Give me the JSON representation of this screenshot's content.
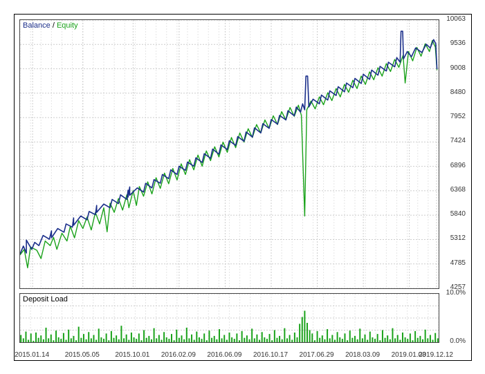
{
  "type": "line+area",
  "frame": {
    "border_color": "#000000",
    "background": "#ffffff"
  },
  "main_chart": {
    "title_parts": {
      "balance_label": "Balance",
      "sep": " / ",
      "equity_label": "Equity"
    },
    "balance_color": "#1a2e8a",
    "equity_color": "#1aa21a",
    "balance_line_width": 1.6,
    "equity_line_width": 1.4,
    "grid_color": "#cccccc",
    "grid_dash": "2 2",
    "font_size_labels": 10,
    "y": {
      "min": 4257,
      "max": 10063,
      "ticks": [
        4257,
        4785,
        5312,
        5840,
        6368,
        6896,
        7424,
        7952,
        8480,
        9008,
        9536,
        10063
      ]
    },
    "x": {
      "min": 0,
      "max": 1000,
      "tick_positions": [
        30,
        150,
        270,
        380,
        490,
        600,
        710,
        820,
        930,
        995
      ],
      "tick_labels": [
        "2015.01.14",
        "2015.05.05",
        "2015.10.01",
        "2016.02.09",
        "2016.06.09",
        "2016.10.17",
        "2017.06.29",
        "2018.03.09",
        "2019.01.03",
        "2019.12.12"
      ]
    },
    "balance_series": [
      [
        0,
        5000
      ],
      [
        8,
        5170
      ],
      [
        15,
        5020
      ],
      [
        15,
        5300
      ],
      [
        28,
        5100
      ],
      [
        35,
        5250
      ],
      [
        45,
        5180
      ],
      [
        55,
        5400
      ],
      [
        70,
        5320
      ],
      [
        75,
        5500
      ],
      [
        75,
        5350
      ],
      [
        90,
        5550
      ],
      [
        105,
        5470
      ],
      [
        110,
        5650
      ],
      [
        125,
        5580
      ],
      [
        128,
        5780
      ],
      [
        128,
        5620
      ],
      [
        145,
        5820
      ],
      [
        160,
        5740
      ],
      [
        165,
        5920
      ],
      [
        180,
        5850
      ],
      [
        183,
        6050
      ],
      [
        183,
        5900
      ],
      [
        200,
        6080
      ],
      [
        215,
        6000
      ],
      [
        220,
        6180
      ],
      [
        235,
        6090
      ],
      [
        240,
        6280
      ],
      [
        255,
        6180
      ],
      [
        258,
        6380
      ],
      [
        258,
        6230
      ],
      [
        262,
        6450
      ],
      [
        262,
        6270
      ],
      [
        280,
        6430
      ],
      [
        295,
        6340
      ],
      [
        300,
        6530
      ],
      [
        315,
        6430
      ],
      [
        320,
        6610
      ],
      [
        335,
        6530
      ],
      [
        340,
        6720
      ],
      [
        355,
        6630
      ],
      [
        360,
        6820
      ],
      [
        375,
        6720
      ],
      [
        380,
        6900
      ],
      [
        395,
        6810
      ],
      [
        400,
        6990
      ],
      [
        415,
        6900
      ],
      [
        420,
        7080
      ],
      [
        435,
        6980
      ],
      [
        440,
        7170
      ],
      [
        455,
        7070
      ],
      [
        460,
        7270
      ],
      [
        475,
        7160
      ],
      [
        480,
        7360
      ],
      [
        495,
        7260
      ],
      [
        500,
        7450
      ],
      [
        515,
        7350
      ],
      [
        520,
        7540
      ],
      [
        535,
        7440
      ],
      [
        540,
        7640
      ],
      [
        555,
        7530
      ],
      [
        560,
        7730
      ],
      [
        575,
        7620
      ],
      [
        580,
        7820
      ],
      [
        595,
        7720
      ],
      [
        600,
        7910
      ],
      [
        615,
        7810
      ],
      [
        620,
        8000
      ],
      [
        635,
        7900
      ],
      [
        640,
        8100
      ],
      [
        655,
        7990
      ],
      [
        660,
        8180
      ],
      [
        670,
        8070
      ],
      [
        675,
        8250
      ],
      [
        680,
        8120
      ],
      [
        683,
        8850
      ],
      [
        687,
        8850
      ],
      [
        690,
        8180
      ],
      [
        700,
        8350
      ],
      [
        715,
        8250
      ],
      [
        720,
        8440
      ],
      [
        735,
        8330
      ],
      [
        740,
        8530
      ],
      [
        755,
        8430
      ],
      [
        760,
        8620
      ],
      [
        775,
        8510
      ],
      [
        780,
        8700
      ],
      [
        795,
        8600
      ],
      [
        800,
        8800
      ],
      [
        815,
        8690
      ],
      [
        820,
        8890
      ],
      [
        835,
        8780
      ],
      [
        840,
        8980
      ],
      [
        855,
        8870
      ],
      [
        860,
        9060
      ],
      [
        875,
        8960
      ],
      [
        880,
        9150
      ],
      [
        895,
        9050
      ],
      [
        900,
        9250
      ],
      [
        908,
        9150
      ],
      [
        910,
        9820
      ],
      [
        914,
        9820
      ],
      [
        916,
        9220
      ],
      [
        925,
        9380
      ],
      [
        935,
        9270
      ],
      [
        945,
        9460
      ],
      [
        960,
        9360
      ],
      [
        970,
        9540
      ],
      [
        980,
        9460
      ],
      [
        988,
        9640
      ],
      [
        993,
        9550
      ],
      [
        996,
        9000
      ]
    ],
    "equity_series": [
      [
        0,
        4980
      ],
      [
        10,
        5100
      ],
      [
        18,
        4700
      ],
      [
        25,
        5150
      ],
      [
        40,
        5080
      ],
      [
        50,
        4900
      ],
      [
        60,
        5280
      ],
      [
        72,
        5180
      ],
      [
        80,
        5360
      ],
      [
        88,
        5100
      ],
      [
        100,
        5450
      ],
      [
        112,
        5280
      ],
      [
        120,
        5600
      ],
      [
        130,
        5350
      ],
      [
        140,
        5720
      ],
      [
        150,
        5550
      ],
      [
        160,
        5800
      ],
      [
        170,
        5520
      ],
      [
        180,
        5900
      ],
      [
        190,
        5650
      ],
      [
        200,
        6000
      ],
      [
        208,
        5480
      ],
      [
        215,
        6100
      ],
      [
        225,
        5900
      ],
      [
        235,
        6200
      ],
      [
        245,
        5950
      ],
      [
        255,
        6280
      ],
      [
        260,
        6000
      ],
      [
        270,
        6370
      ],
      [
        278,
        6050
      ],
      [
        285,
        6460
      ],
      [
        295,
        6250
      ],
      [
        305,
        6560
      ],
      [
        315,
        6300
      ],
      [
        325,
        6650
      ],
      [
        335,
        6420
      ],
      [
        345,
        6750
      ],
      [
        355,
        6520
      ],
      [
        365,
        6850
      ],
      [
        375,
        6600
      ],
      [
        385,
        6950
      ],
      [
        395,
        6720
      ],
      [
        405,
        7040
      ],
      [
        415,
        6820
      ],
      [
        425,
        7140
      ],
      [
        435,
        6900
      ],
      [
        445,
        7230
      ],
      [
        455,
        7020
      ],
      [
        465,
        7320
      ],
      [
        475,
        7100
      ],
      [
        485,
        7420
      ],
      [
        495,
        7200
      ],
      [
        505,
        7520
      ],
      [
        515,
        7300
      ],
      [
        525,
        7620
      ],
      [
        535,
        7420
      ],
      [
        545,
        7710
      ],
      [
        555,
        7520
      ],
      [
        565,
        7800
      ],
      [
        575,
        7620
      ],
      [
        585,
        7900
      ],
      [
        595,
        7720
      ],
      [
        605,
        7990
      ],
      [
        615,
        7800
      ],
      [
        625,
        8080
      ],
      [
        635,
        7900
      ],
      [
        645,
        8170
      ],
      [
        655,
        7980
      ],
      [
        665,
        8220
      ],
      [
        672,
        8000
      ],
      [
        680,
        5820
      ],
      [
        685,
        8120
      ],
      [
        695,
        8310
      ],
      [
        705,
        8140
      ],
      [
        715,
        8400
      ],
      [
        725,
        8230
      ],
      [
        735,
        8490
      ],
      [
        745,
        8320
      ],
      [
        755,
        8580
      ],
      [
        765,
        8400
      ],
      [
        775,
        8670
      ],
      [
        785,
        8500
      ],
      [
        795,
        8760
      ],
      [
        805,
        8580
      ],
      [
        815,
        8850
      ],
      [
        825,
        8670
      ],
      [
        835,
        8940
      ],
      [
        845,
        8770
      ],
      [
        855,
        9030
      ],
      [
        865,
        8850
      ],
      [
        875,
        9120
      ],
      [
        885,
        8950
      ],
      [
        895,
        9210
      ],
      [
        905,
        9040
      ],
      [
        915,
        9300
      ],
      [
        920,
        8700
      ],
      [
        928,
        9380
      ],
      [
        938,
        9180
      ],
      [
        948,
        9470
      ],
      [
        958,
        9280
      ],
      [
        968,
        9550
      ],
      [
        978,
        9380
      ],
      [
        985,
        9620
      ],
      [
        992,
        9480
      ],
      [
        996,
        8980
      ]
    ]
  },
  "load_chart": {
    "label": "Deposit Load",
    "bar_color": "#1aa21a",
    "y": {
      "min": 0,
      "max": 10,
      "ticks": [
        0,
        10
      ],
      "tick_labels": [
        "0.0%",
        "10.0%"
      ]
    },
    "series": [
      [
        2,
        1.5
      ],
      [
        8,
        0.8
      ],
      [
        14,
        2.2
      ],
      [
        20,
        0.5
      ],
      [
        26,
        1.8
      ],
      [
        32,
        0.3
      ],
      [
        38,
        2.0
      ],
      [
        44,
        0.9
      ],
      [
        50,
        1.4
      ],
      [
        56,
        0.6
      ],
      [
        62,
        3.0
      ],
      [
        68,
        0.8
      ],
      [
        74,
        1.6
      ],
      [
        80,
        0.4
      ],
      [
        86,
        2.4
      ],
      [
        92,
        1.0
      ],
      [
        98,
        0.7
      ],
      [
        104,
        1.9
      ],
      [
        110,
        0.5
      ],
      [
        116,
        2.6
      ],
      [
        122,
        0.8
      ],
      [
        128,
        1.3
      ],
      [
        134,
        0.4
      ],
      [
        140,
        3.2
      ],
      [
        146,
        0.9
      ],
      [
        152,
        1.7
      ],
      [
        158,
        0.6
      ],
      [
        164,
        2.1
      ],
      [
        170,
        0.8
      ],
      [
        176,
        1.5
      ],
      [
        182,
        0.5
      ],
      [
        188,
        2.8
      ],
      [
        194,
        1.0
      ],
      [
        200,
        0.7
      ],
      [
        206,
        1.8
      ],
      [
        212,
        0.4
      ],
      [
        218,
        2.3
      ],
      [
        224,
        0.9
      ],
      [
        230,
        1.4
      ],
      [
        236,
        0.6
      ],
      [
        242,
        3.4
      ],
      [
        248,
        0.8
      ],
      [
        254,
        1.6
      ],
      [
        260,
        0.5
      ],
      [
        266,
        2.0
      ],
      [
        272,
        1.0
      ],
      [
        278,
        0.7
      ],
      [
        284,
        1.8
      ],
      [
        290,
        0.4
      ],
      [
        296,
        2.5
      ],
      [
        302,
        0.9
      ],
      [
        308,
        1.3
      ],
      [
        314,
        0.6
      ],
      [
        320,
        2.9
      ],
      [
        326,
        0.8
      ],
      [
        332,
        1.5
      ],
      [
        338,
        0.5
      ],
      [
        344,
        2.1
      ],
      [
        350,
        1.0
      ],
      [
        356,
        0.7
      ],
      [
        362,
        1.7
      ],
      [
        368,
        0.4
      ],
      [
        374,
        2.6
      ],
      [
        380,
        0.9
      ],
      [
        386,
        1.4
      ],
      [
        392,
        0.6
      ],
      [
        398,
        3.0
      ],
      [
        404,
        0.8
      ],
      [
        410,
        1.6
      ],
      [
        416,
        0.5
      ],
      [
        422,
        2.2
      ],
      [
        428,
        1.0
      ],
      [
        434,
        0.7
      ],
      [
        440,
        1.8
      ],
      [
        446,
        0.4
      ],
      [
        452,
        2.4
      ],
      [
        458,
        0.9
      ],
      [
        464,
        1.3
      ],
      [
        470,
        0.6
      ],
      [
        476,
        2.7
      ],
      [
        482,
        0.8
      ],
      [
        488,
        1.5
      ],
      [
        494,
        0.5
      ],
      [
        500,
        2.0
      ],
      [
        506,
        1.0
      ],
      [
        512,
        0.7
      ],
      [
        518,
        1.8
      ],
      [
        524,
        0.4
      ],
      [
        530,
        2.3
      ],
      [
        536,
        0.9
      ],
      [
        542,
        1.4
      ],
      [
        548,
        0.6
      ],
      [
        554,
        2.8
      ],
      [
        560,
        0.8
      ],
      [
        566,
        1.6
      ],
      [
        572,
        0.5
      ],
      [
        578,
        2.1
      ],
      [
        584,
        1.0
      ],
      [
        590,
        0.7
      ],
      [
        596,
        1.7
      ],
      [
        602,
        0.4
      ],
      [
        608,
        2.5
      ],
      [
        614,
        0.9
      ],
      [
        620,
        1.3
      ],
      [
        626,
        0.6
      ],
      [
        632,
        2.9
      ],
      [
        638,
        0.8
      ],
      [
        644,
        1.5
      ],
      [
        650,
        0.5
      ],
      [
        656,
        2.0
      ],
      [
        662,
        1.0
      ],
      [
        668,
        3.8
      ],
      [
        674,
        5.2
      ],
      [
        680,
        6.5
      ],
      [
        686,
        4.0
      ],
      [
        692,
        2.5
      ],
      [
        698,
        1.8
      ],
      [
        704,
        0.4
      ],
      [
        710,
        2.3
      ],
      [
        716,
        0.9
      ],
      [
        722,
        1.4
      ],
      [
        728,
        0.6
      ],
      [
        734,
        2.7
      ],
      [
        740,
        0.8
      ],
      [
        746,
        1.5
      ],
      [
        752,
        0.5
      ],
      [
        758,
        2.1
      ],
      [
        764,
        1.0
      ],
      [
        770,
        0.7
      ],
      [
        776,
        1.8
      ],
      [
        782,
        0.4
      ],
      [
        788,
        2.4
      ],
      [
        794,
        0.9
      ],
      [
        800,
        1.3
      ],
      [
        806,
        0.6
      ],
      [
        812,
        2.8
      ],
      [
        818,
        0.8
      ],
      [
        824,
        1.6
      ],
      [
        830,
        0.5
      ],
      [
        836,
        2.2
      ],
      [
        842,
        1.0
      ],
      [
        848,
        0.7
      ],
      [
        854,
        1.7
      ],
      [
        860,
        0.4
      ],
      [
        866,
        2.5
      ],
      [
        872,
        0.9
      ],
      [
        878,
        1.4
      ],
      [
        884,
        0.6
      ],
      [
        890,
        2.9
      ],
      [
        896,
        0.8
      ],
      [
        902,
        1.5
      ],
      [
        908,
        0.5
      ],
      [
        914,
        2.0
      ],
      [
        920,
        1.0
      ],
      [
        926,
        0.7
      ],
      [
        932,
        1.8
      ],
      [
        938,
        0.4
      ],
      [
        944,
        2.3
      ],
      [
        950,
        0.9
      ],
      [
        956,
        1.3
      ],
      [
        962,
        0.6
      ],
      [
        968,
        2.6
      ],
      [
        974,
        0.8
      ],
      [
        980,
        1.5
      ],
      [
        986,
        0.5
      ],
      [
        992,
        1.9
      ],
      [
        998,
        0.8
      ]
    ]
  }
}
